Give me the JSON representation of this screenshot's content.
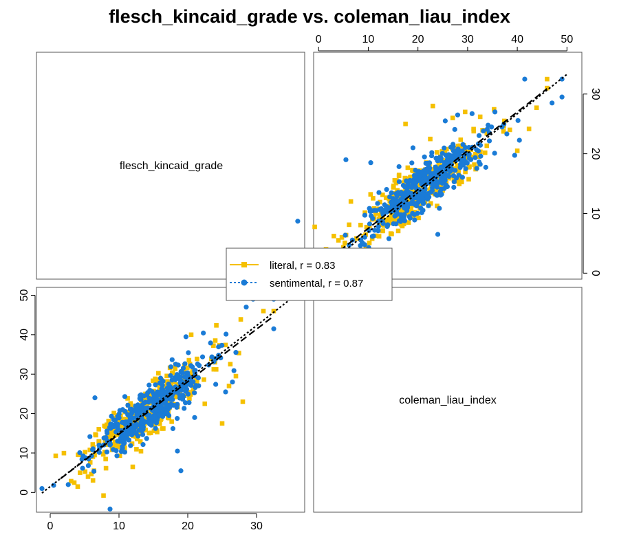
{
  "chart_data": {
    "type": "scatter",
    "title": "flesch_kincaid_grade vs. coleman_liau_index",
    "variables": [
      "flesch_kincaid_grade",
      "coleman_liau_index"
    ],
    "layout": "scatterplot-matrix",
    "lower_panel": {
      "xvar": "flesch_kincaid_grade",
      "yvar": "coleman_liau_index",
      "xlim": [
        -2,
        37
      ],
      "ylim": [
        -5,
        52
      ],
      "xticks": [
        "0",
        "10",
        "20",
        "30"
      ],
      "yticks": [
        "0",
        "10",
        "20",
        "30",
        "40",
        "50"
      ]
    },
    "upper_panel": {
      "xvar": "coleman_liau_index",
      "yvar": "flesch_kincaid_grade",
      "xlim": [
        -1,
        53
      ],
      "ylim": [
        -1,
        37
      ],
      "xticks": [
        "0",
        "10",
        "20",
        "30",
        "40",
        "50"
      ],
      "yticks": [
        "0",
        "10",
        "20",
        "30"
      ]
    },
    "grid": false,
    "legend_position": "center",
    "series": [
      {
        "name": "literal, r = 0.83",
        "color": "#F5C000",
        "marker": "square",
        "line_style": "long-dash",
        "fit": {
          "slope": 1.33,
          "intercept": 1.5
        },
        "center": [
          14.0,
          20.0
        ],
        "count": 380,
        "outliers": [
          [
            0.8,
            9.3
          ],
          [
            3.5,
            2.5
          ],
          [
            4.0,
            1.5
          ],
          [
            5.5,
            4.0
          ],
          [
            27.0,
            29.5
          ],
          [
            28.0,
            23.0
          ],
          [
            25.0,
            17.5
          ],
          [
            26.0,
            27.0
          ],
          [
            31.0,
            46.0
          ],
          [
            32.5,
            46.0
          ],
          [
            24.0,
            38.5
          ],
          [
            20.5,
            40.0
          ],
          [
            12.0,
            6.5
          ]
        ]
      },
      {
        "name": "sentimental, r = 0.87",
        "color": "#1A7BD6",
        "marker": "circle",
        "line_style": "dotted",
        "fit": {
          "slope": 1.36,
          "intercept": 1.5
        },
        "center": [
          14.5,
          21.0
        ],
        "count": 420,
        "outliers": [
          [
            -1.2,
            1.0
          ],
          [
            0.5,
            1.8
          ],
          [
            8.7,
            -4.2
          ],
          [
            6.5,
            24.0
          ],
          [
            19.0,
            5.5
          ],
          [
            18.5,
            10.5
          ],
          [
            29.5,
            49.0
          ],
          [
            32.5,
            49.0
          ],
          [
            28.5,
            47.0
          ],
          [
            32.5,
            41.5
          ],
          [
            27.0,
            35.5
          ],
          [
            26.5,
            28.0
          ],
          [
            25.5,
            25.5
          ],
          [
            21.0,
            19.0
          ]
        ]
      }
    ]
  }
}
